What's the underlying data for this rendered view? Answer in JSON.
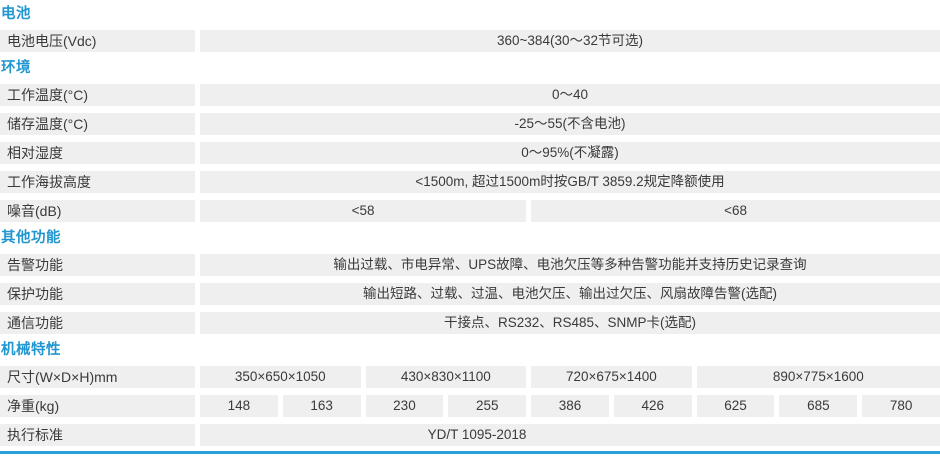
{
  "colors": {
    "accent_blue": "#2196d0",
    "cell_background": "#efefef",
    "text": "#3a3a3a",
    "bottom_line": "#2b9fd8"
  },
  "grid": {
    "value_columns": 9
  },
  "sections": [
    {
      "title": "电池",
      "rows": [
        {
          "label": "电池电压(Vdc)",
          "cells": [
            {
              "text": "360~384(30～32节可选)",
              "span": 9
            }
          ]
        }
      ]
    },
    {
      "title": "环境",
      "rows": [
        {
          "label": "工作温度(°C)",
          "cells": [
            {
              "text": "0～40",
              "span": 9
            }
          ]
        },
        {
          "label": "储存温度(°C)",
          "cells": [
            {
              "text": "-25～55(不含电池)",
              "span": 9
            }
          ]
        },
        {
          "label": "相对湿度",
          "cells": [
            {
              "text": "0～95%(不凝露)",
              "span": 9
            }
          ]
        },
        {
          "label": "工作海拔高度",
          "cells": [
            {
              "text": "<1500m, 超过1500m时按GB/T 3859.2规定降额使用",
              "span": 9
            }
          ]
        },
        {
          "label": "噪音(dB)",
          "cells": [
            {
              "text": "<58",
              "span": 4
            },
            {
              "text": "<68",
              "span": 5
            }
          ]
        }
      ]
    },
    {
      "title": "其他功能",
      "rows": [
        {
          "label": "告警功能",
          "cells": [
            {
              "text": "输出过载、市电异常、UPS故障、电池欠压等多种告警功能并支持历史记录查询",
              "span": 9
            }
          ]
        },
        {
          "label": "保护功能",
          "cells": [
            {
              "text": "输出短路、过载、过温、电池欠压、输出过欠压、风扇故障告警(选配)",
              "span": 9
            }
          ]
        },
        {
          "label": "通信功能",
          "cells": [
            {
              "text": "干接点、RS232、RS485、SNMP卡(选配)",
              "span": 9
            }
          ]
        }
      ]
    },
    {
      "title": "机械特性",
      "rows": [
        {
          "label": "尺寸(W×D×H)mm",
          "cells": [
            {
              "text": "350×650×1050",
              "span": 2
            },
            {
              "text": "430×830×1100",
              "span": 2
            },
            {
              "text": "720×675×1400",
              "span": 2
            },
            {
              "text": "890×775×1600",
              "span": 3
            }
          ]
        },
        {
          "label": "净重(kg)",
          "cells": [
            {
              "text": "148",
              "span": 1
            },
            {
              "text": "163",
              "span": 1
            },
            {
              "text": "230",
              "span": 1
            },
            {
              "text": "255",
              "span": 1
            },
            {
              "text": "386",
              "span": 1
            },
            {
              "text": "426",
              "span": 1
            },
            {
              "text": "625",
              "span": 1
            },
            {
              "text": "685",
              "span": 1
            },
            {
              "text": "780",
              "span": 1
            }
          ]
        },
        {
          "label": "执行标准",
          "cells": [
            {
              "text": "YD/T 1095-2018",
              "span": 9,
              "align": "shift-left"
            }
          ]
        }
      ]
    }
  ]
}
